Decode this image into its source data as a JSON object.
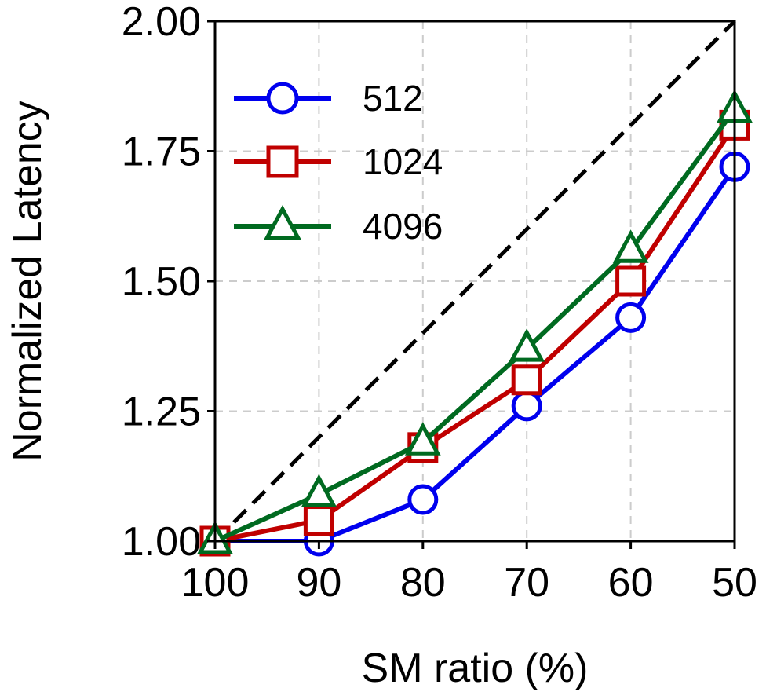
{
  "chart_data": {
    "type": "line",
    "xlabel": "SM ratio (%)",
    "ylabel": "Normalized Latency",
    "x": [
      100,
      90,
      80,
      70,
      60,
      50
    ],
    "x_tick_labels": [
      "100",
      "90",
      "80",
      "70",
      "60",
      "50"
    ],
    "y_tick_labels": [
      "1.00",
      "1.25",
      "1.50",
      "1.75",
      "2.00"
    ],
    "xlim": [
      100,
      50
    ],
    "ylim": [
      1.0,
      2.0
    ],
    "y_ticks": [
      1.0,
      1.25,
      1.5,
      1.75,
      2.0
    ],
    "x_reversed": true,
    "grid": true,
    "grid_style": "dashed",
    "legend_position": "top-left",
    "series": [
      {
        "name": "512",
        "color": "#0000ee",
        "marker": "circle",
        "values": [
          1.0,
          1.0,
          1.08,
          1.26,
          1.43,
          1.72
        ]
      },
      {
        "name": "1024",
        "color": "#c00000",
        "marker": "square",
        "values": [
          1.0,
          1.04,
          1.18,
          1.31,
          1.5,
          1.8
        ]
      },
      {
        "name": "4096",
        "color": "#006a20",
        "marker": "triangle",
        "values": [
          1.0,
          1.09,
          1.19,
          1.37,
          1.56,
          1.83
        ]
      }
    ],
    "reference_line": {
      "style": "dashed",
      "color": "#000000",
      "x": [
        100,
        50
      ],
      "y": [
        1.0,
        2.0
      ]
    }
  }
}
